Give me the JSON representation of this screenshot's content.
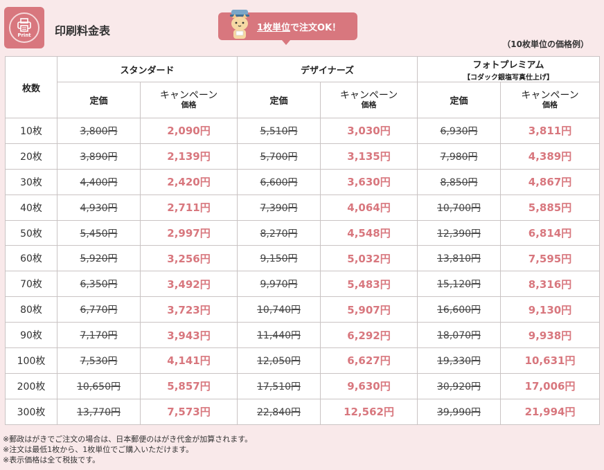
{
  "header": {
    "logo_word": "Print",
    "title": "印刷料金表",
    "promo_highlight": "1枚単位",
    "promo_rest": "で注文OK！",
    "price_note": "（10枚単位の価格例）"
  },
  "table": {
    "qty_header": "枚数",
    "plans": [
      {
        "name": "スタンダード",
        "sub": ""
      },
      {
        "name": "デザイナーズ",
        "sub": ""
      },
      {
        "name": "フォトプレミアム",
        "sub": "【コダック銀塩写真仕上げ】"
      }
    ],
    "list_label": "定価",
    "campaign_label_1": "キャンペーン",
    "campaign_label_2": "価格",
    "rows": [
      {
        "qty": "10枚",
        "std_list": "3,800円",
        "std_camp": "2,090円",
        "des_list": "5,510円",
        "des_camp": "3,030円",
        "pho_list": "6,930円",
        "pho_camp": "3,811円"
      },
      {
        "qty": "20枚",
        "std_list": "3,890円",
        "std_camp": "2,139円",
        "des_list": "5,700円",
        "des_camp": "3,135円",
        "pho_list": "7,980円",
        "pho_camp": "4,389円"
      },
      {
        "qty": "30枚",
        "std_list": "4,400円",
        "std_camp": "2,420円",
        "des_list": "6,600円",
        "des_camp": "3,630円",
        "pho_list": "8,850円",
        "pho_camp": "4,867円"
      },
      {
        "qty": "40枚",
        "std_list": "4,930円",
        "std_camp": "2,711円",
        "des_list": "7,390円",
        "des_camp": "4,064円",
        "pho_list": "10,700円",
        "pho_camp": "5,885円"
      },
      {
        "qty": "50枚",
        "std_list": "5,450円",
        "std_camp": "2,997円",
        "des_list": "8,270円",
        "des_camp": "4,548円",
        "pho_list": "12,390円",
        "pho_camp": "6,814円"
      },
      {
        "qty": "60枚",
        "std_list": "5,920円",
        "std_camp": "3,256円",
        "des_list": "9,150円",
        "des_camp": "5,032円",
        "pho_list": "13,810円",
        "pho_camp": "7,595円"
      },
      {
        "qty": "70枚",
        "std_list": "6,350円",
        "std_camp": "3,492円",
        "des_list": "9,970円",
        "des_camp": "5,483円",
        "pho_list": "15,120円",
        "pho_camp": "8,316円"
      },
      {
        "qty": "80枚",
        "std_list": "6,770円",
        "std_camp": "3,723円",
        "des_list": "10,740円",
        "des_camp": "5,907円",
        "pho_list": "16,600円",
        "pho_camp": "9,130円"
      },
      {
        "qty": "90枚",
        "std_list": "7,170円",
        "std_camp": "3,943円",
        "des_list": "11,440円",
        "des_camp": "6,292円",
        "pho_list": "18,070円",
        "pho_camp": "9,938円"
      },
      {
        "qty": "100枚",
        "std_list": "7,530円",
        "std_camp": "4,141円",
        "des_list": "12,050円",
        "des_camp": "6,627円",
        "pho_list": "19,330円",
        "pho_camp": "10,631円"
      },
      {
        "qty": "200枚",
        "std_list": "10,650円",
        "std_camp": "5,857円",
        "des_list": "17,510円",
        "des_camp": "9,630円",
        "pho_list": "30,920円",
        "pho_camp": "17,006円"
      },
      {
        "qty": "300枚",
        "std_list": "13,770円",
        "std_camp": "7,573円",
        "des_list": "22,840円",
        "des_camp": "12,562円",
        "pho_list": "39,990円",
        "pho_camp": "21,994円"
      }
    ]
  },
  "footnotes": [
    "※郵政はがきでご注文の場合は、日本郵便のはがき代金が加算されます。",
    "※注文は最低1枚から、1枚単位でご購入いただけます。",
    "※表示価格は全て税抜です。"
  ],
  "colors": {
    "accent": "#d8777e",
    "background": "#f9e9ea",
    "border": "#c9c3c3"
  },
  "icons": [
    "printer-icon",
    "cat-mascot-icon"
  ]
}
